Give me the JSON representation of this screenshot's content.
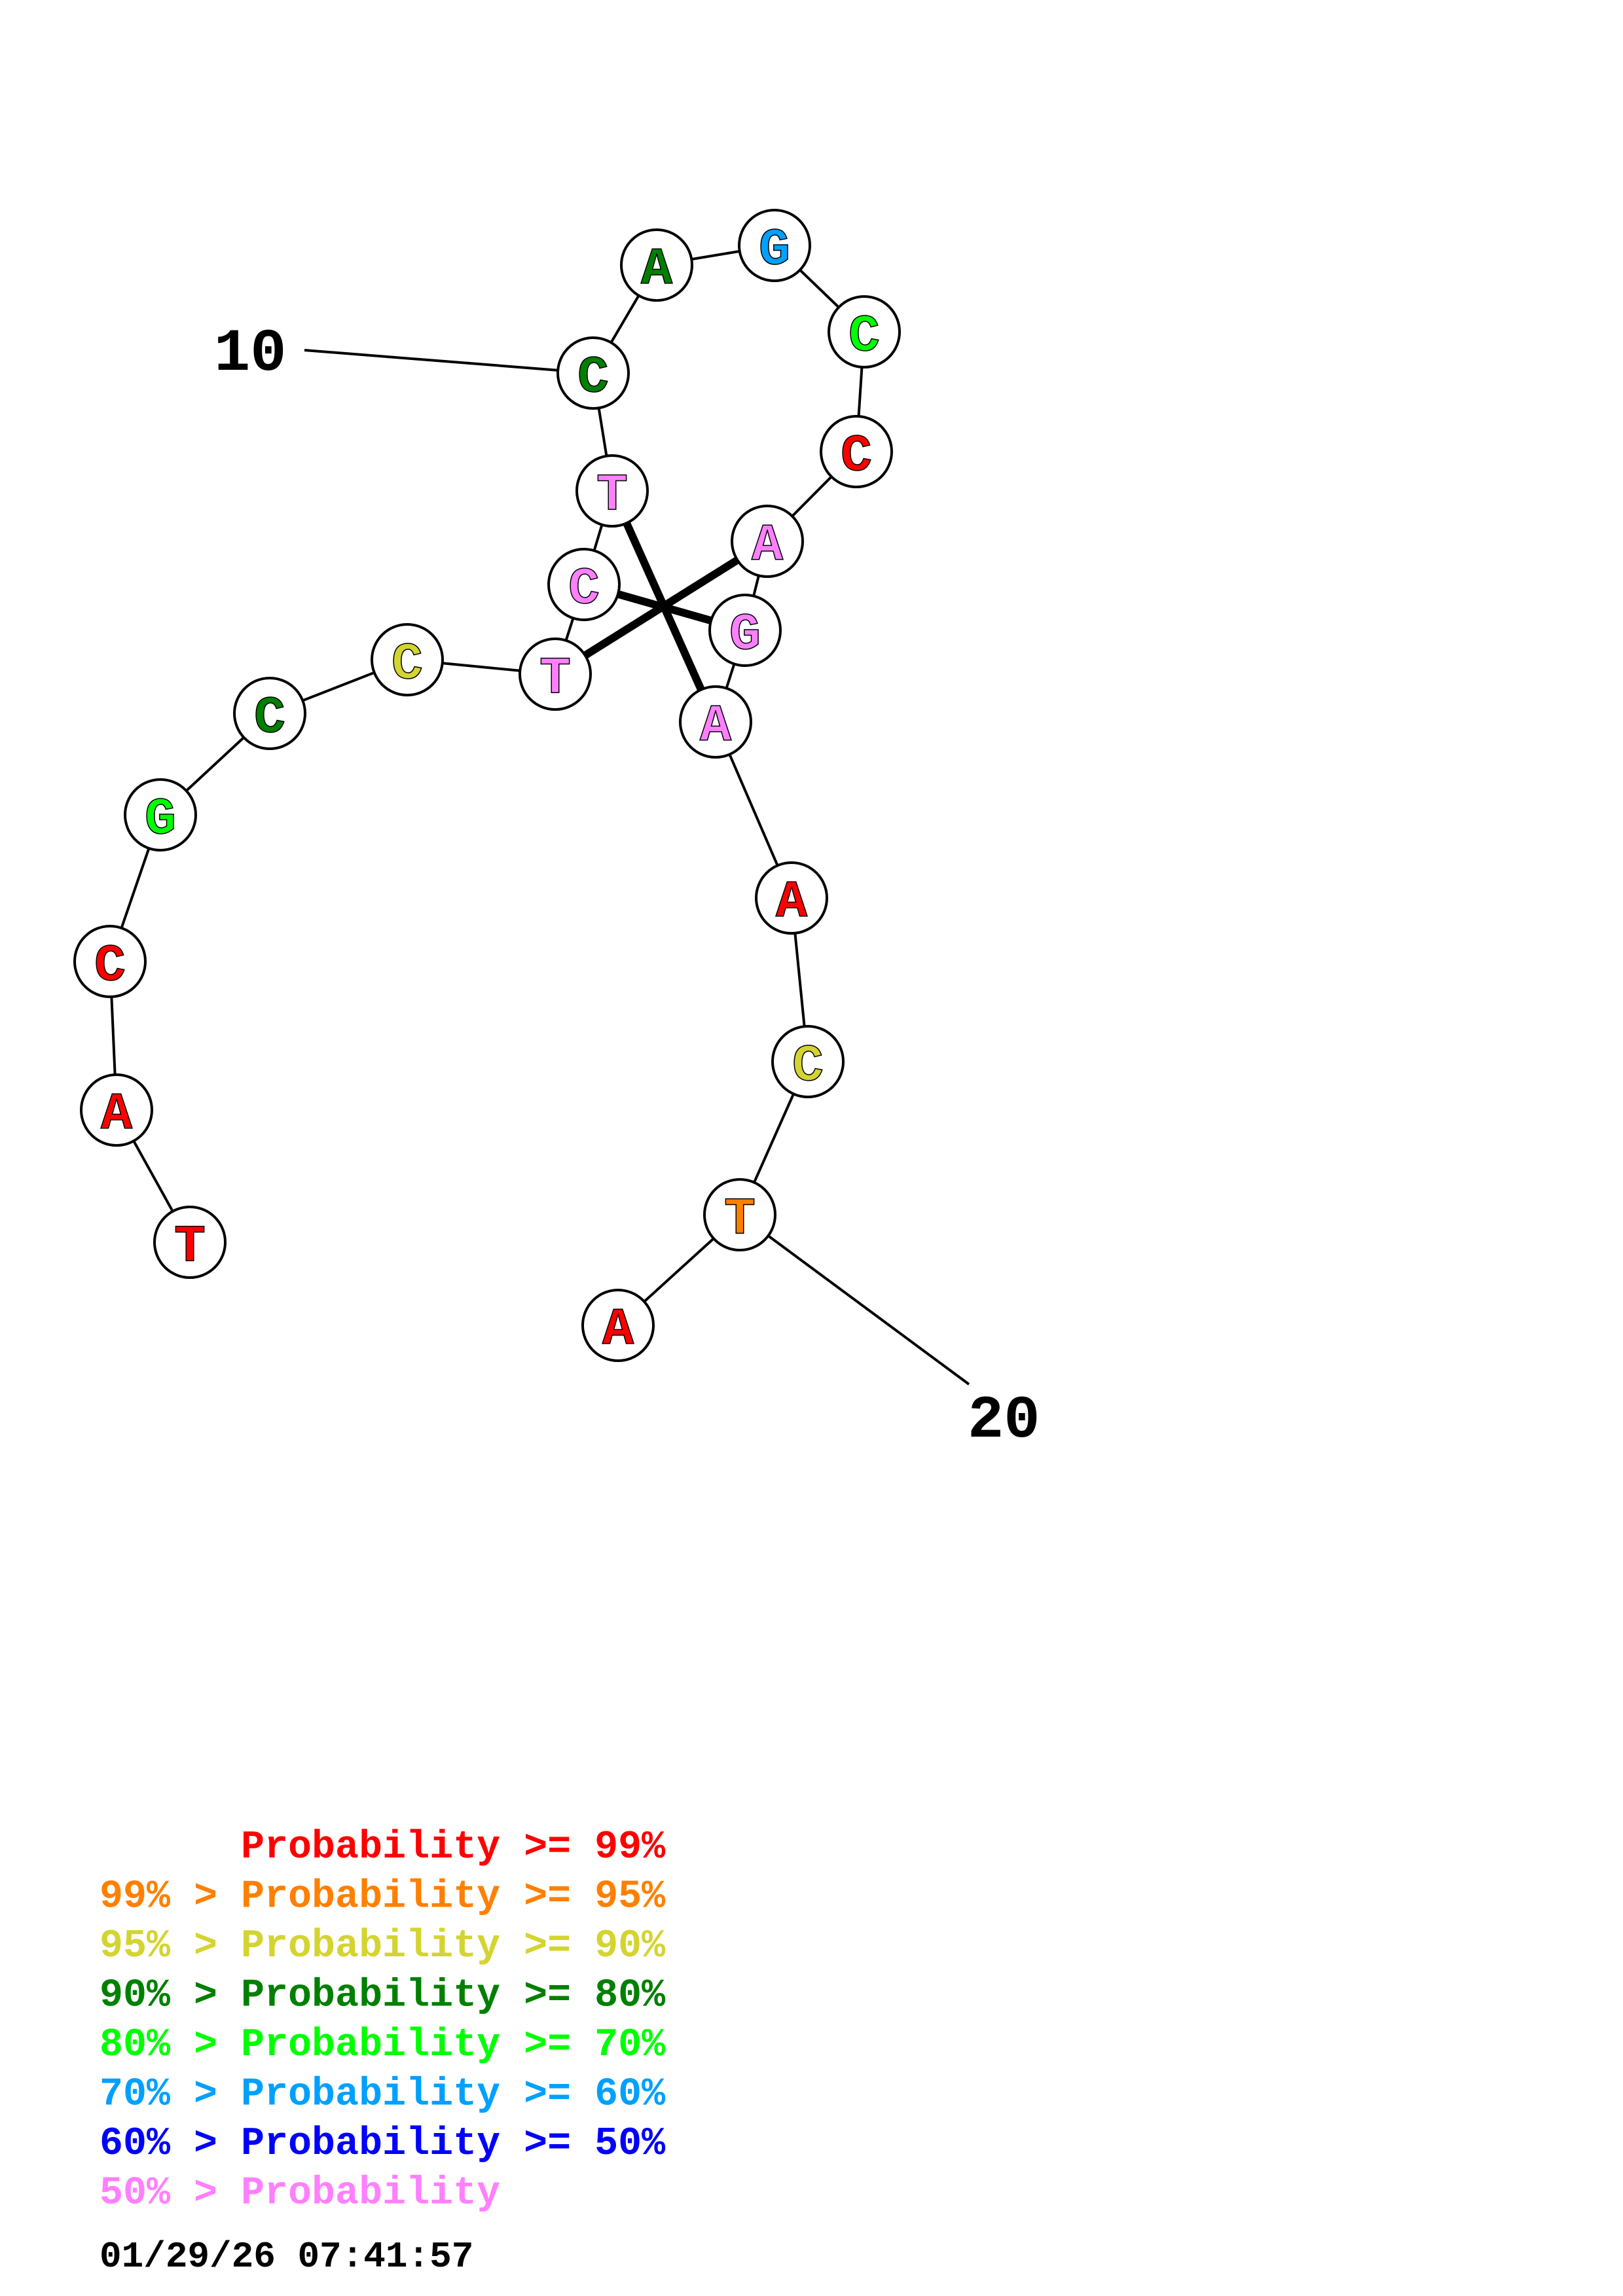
{
  "nucleotides": [
    {
      "letter": "T",
      "tier": 0
    },
    {
      "letter": "A",
      "tier": 0
    },
    {
      "letter": "C",
      "tier": 0
    },
    {
      "letter": "G",
      "tier": 4
    },
    {
      "letter": "C",
      "tier": 3
    },
    {
      "letter": "C",
      "tier": 2
    },
    {
      "letter": "T",
      "tier": 7
    },
    {
      "letter": "C",
      "tier": 7
    },
    {
      "letter": "T",
      "tier": 7
    },
    {
      "letter": "C",
      "tier": 3
    },
    {
      "letter": "A",
      "tier": 3
    },
    {
      "letter": "G",
      "tier": 5
    },
    {
      "letter": "C",
      "tier": 4
    },
    {
      "letter": "C",
      "tier": 0
    },
    {
      "letter": "A",
      "tier": 7
    },
    {
      "letter": "G",
      "tier": 7
    },
    {
      "letter": "A",
      "tier": 7
    },
    {
      "letter": "A",
      "tier": 0
    },
    {
      "letter": "C",
      "tier": 2
    },
    {
      "letter": "T",
      "tier": 1
    },
    {
      "letter": "A",
      "tier": 0
    }
  ],
  "base_pairs": [
    [
      7,
      15
    ],
    [
      8,
      16
    ],
    [
      9,
      17
    ]
  ],
  "position_labels": [
    {
      "text": "10",
      "index": 10
    },
    {
      "text": "20",
      "index": 20
    }
  ],
  "tier_colors": [
    "#ff0000",
    "#ff8000",
    "#d4d431",
    "#008000",
    "#00ff00",
    "#00a0ff",
    "#0000ff",
    "#ff80ff"
  ],
  "legend": [
    {
      "prefix": "",
      "text": "Probability >= 99%"
    },
    {
      "prefix": "99% > ",
      "text": "Probability >= 95%"
    },
    {
      "prefix": "95% > ",
      "text": "Probability >= 90%"
    },
    {
      "prefix": "90% > ",
      "text": "Probability >= 80%"
    },
    {
      "prefix": "80% > ",
      "text": "Probability >= 70%"
    },
    {
      "prefix": "70% > ",
      "text": "Probability >= 60%"
    },
    {
      "prefix": "60% > ",
      "text": "Probability >= 50%"
    },
    {
      "prefix": "50% > ",
      "text": "Probability"
    }
  ],
  "timestamp": "01/29/26 07:41:57"
}
